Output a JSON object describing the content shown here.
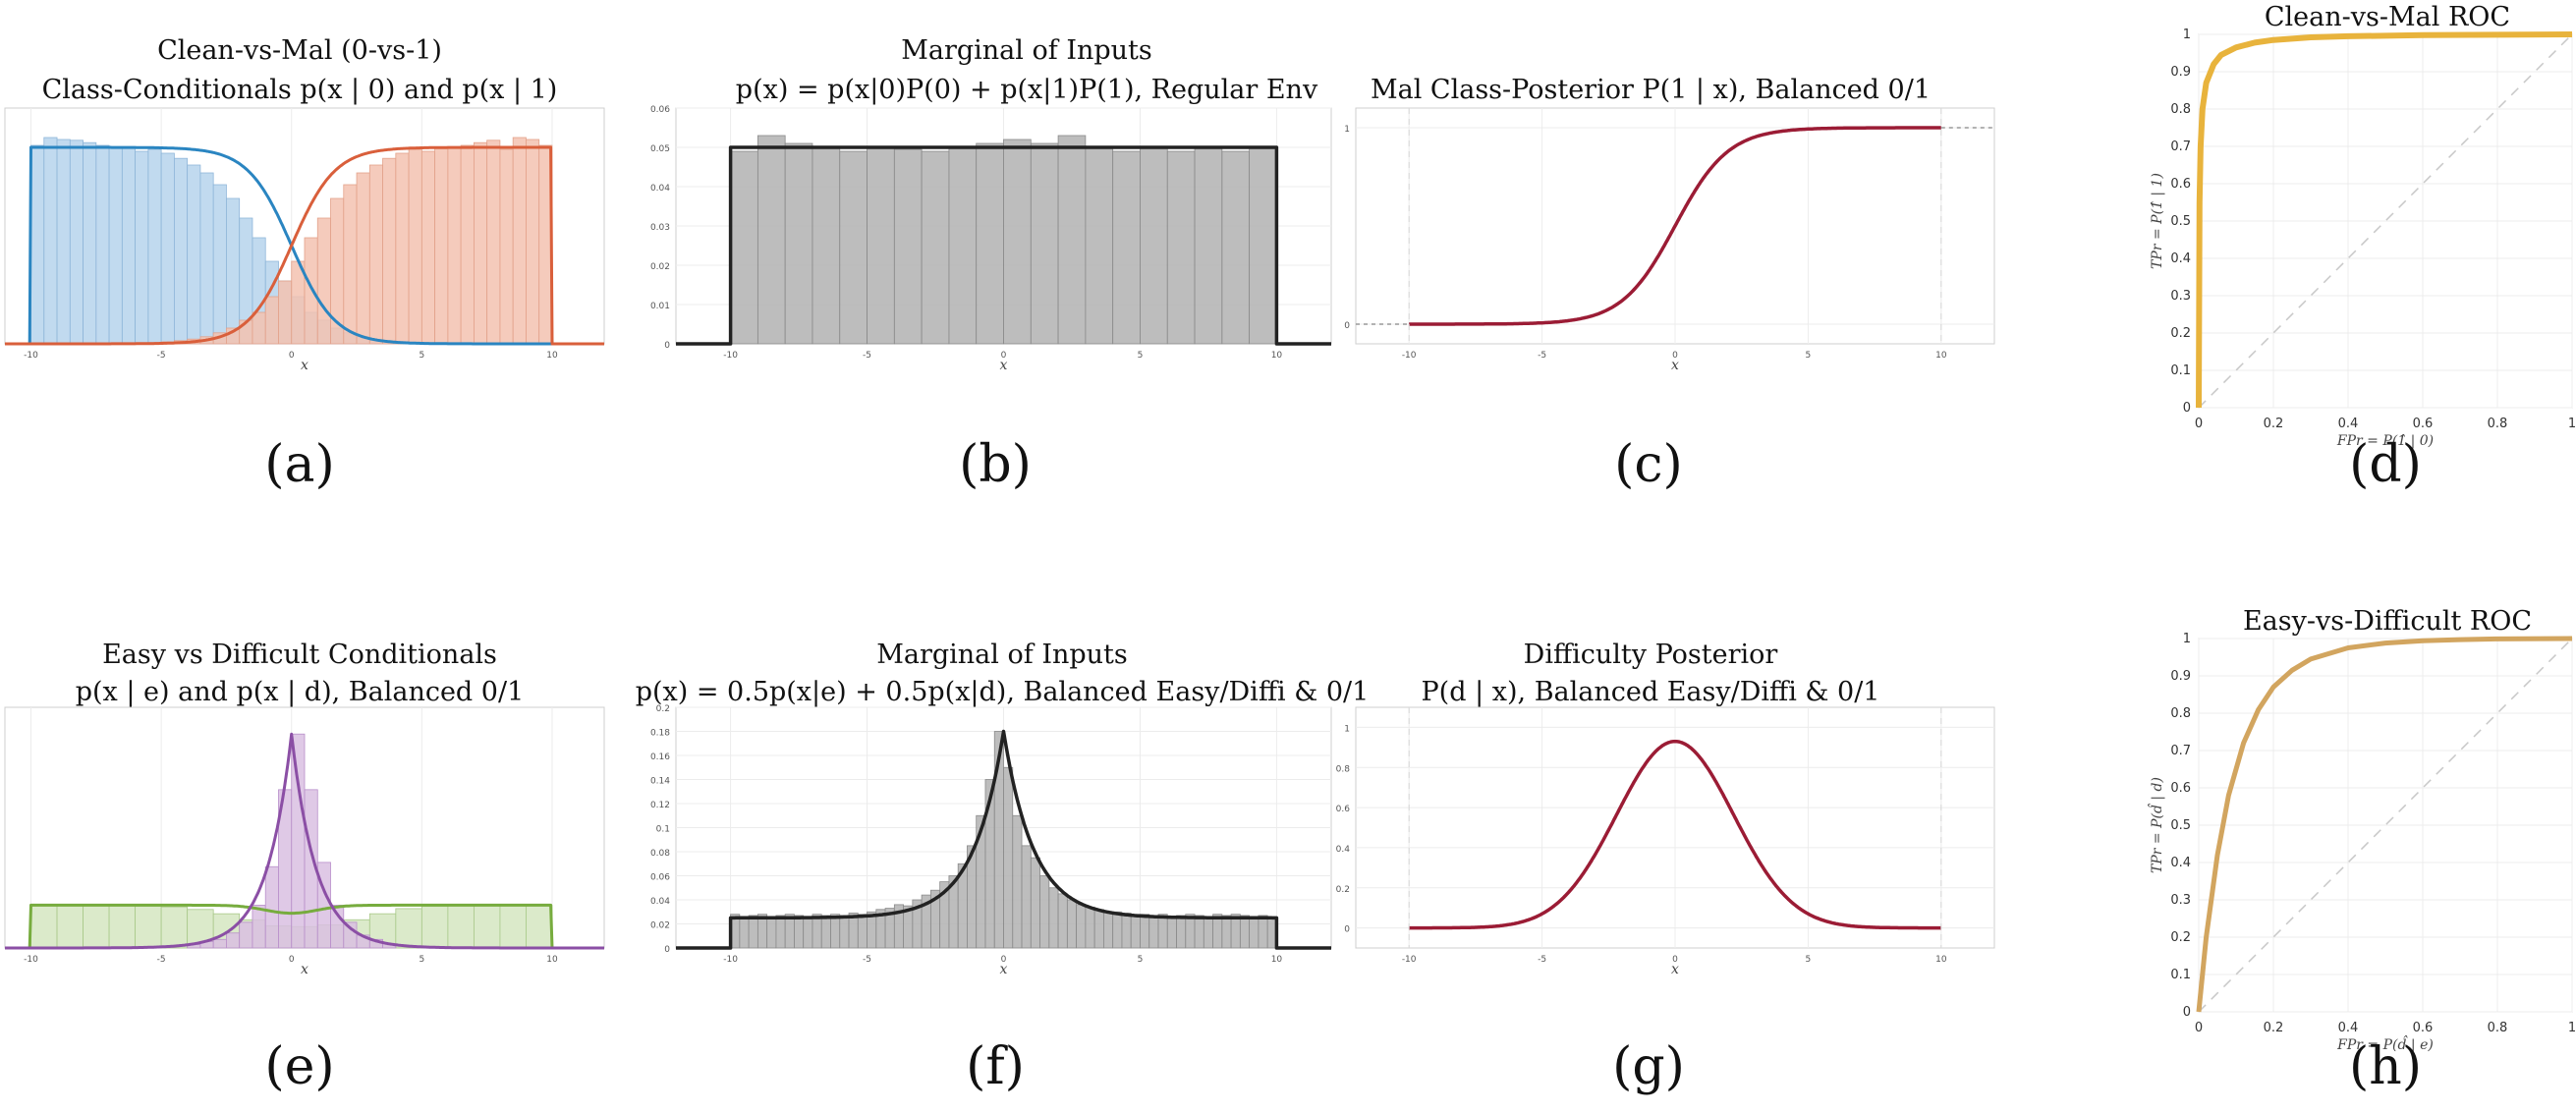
{
  "colors": {
    "blue": "#2a85c1",
    "blue_fill": "#b6d3ec",
    "orange": "#d95f3b",
    "orange_fill": "#f3c2b0",
    "green": "#77ac3e",
    "green_fill": "#d5e6c1",
    "purple": "#8b4fa5",
    "purple_fill": "#d9bfe2",
    "gray_fill": "#b1b1b1",
    "black": "#222222",
    "maroon": "#9b1c35",
    "gold": "#e8b33c",
    "roc_b": "#d2a55f"
  },
  "captions": [
    "(a)",
    "(b)",
    "(c)",
    "(d)",
    "(e)",
    "(f)",
    "(g)",
    "(h)"
  ],
  "chart_data": [
    {
      "id": "a",
      "type": "bar",
      "title": [
        "Clean-vs-Mal (0-vs-1)",
        "Class-Conditionals p(x | 0) and p(x | 1)"
      ],
      "xlabel": "x",
      "xlim": [
        -11,
        12
      ],
      "ylim": [
        0,
        0.06
      ],
      "xticks": [
        -10,
        -5,
        0,
        5,
        10
      ],
      "series": [
        {
          "values": [
            0.0505,
            0.0525,
            0.052,
            0.0518,
            0.0512,
            0.0505,
            0.0498,
            0.05,
            0.049,
            0.0495,
            0.0485,
            0.0472,
            0.0455,
            0.0435,
            0.0405,
            0.037,
            0.032,
            0.027,
            0.021,
            0.016,
            0.012,
            0.008,
            0.006,
            0.004,
            0.0028,
            0.0018,
            0.0012,
            0.0008,
            0.0005,
            0.0003,
            0.0002,
            0.0001,
            0.0001,
            0,
            0,
            0,
            0,
            0,
            0,
            0
          ],
          "x_start": -10,
          "x_end": 10
        },
        {
          "values": [
            0,
            0,
            0,
            0,
            0,
            0,
            0.0001,
            0.0001,
            0.0002,
            0.0003,
            0.0005,
            0.0008,
            0.0012,
            0.0018,
            0.0028,
            0.004,
            0.006,
            0.008,
            0.012,
            0.016,
            0.021,
            0.027,
            0.032,
            0.037,
            0.0405,
            0.0435,
            0.0455,
            0.0472,
            0.0485,
            0.0495,
            0.049,
            0.05,
            0.0498,
            0.0505,
            0.0512,
            0.0518,
            0.0495,
            0.0525,
            0.052,
            0.0505
          ],
          "x_start": -10,
          "x_end": 10
        }
      ]
    },
    {
      "id": "b",
      "type": "bar",
      "title": [
        "Marginal of Inputs",
        "p(x) = p(x|0)P(0) + p(x|1)P(1), Regular Env"
      ],
      "xlabel": "x",
      "xlim": [
        -12,
        12
      ],
      "ylim": [
        0,
        0.06
      ],
      "xticks": [
        -10,
        -5,
        0,
        5,
        10
      ],
      "yticks": [
        0,
        0.01,
        0.02,
        0.03,
        0.04,
        0.05,
        0.06
      ],
      "bins": [
        -10,
        -9,
        -8,
        -7,
        -6,
        -5,
        -4,
        -3,
        -2,
        -1,
        0,
        1,
        2,
        3,
        4,
        5,
        6,
        7,
        8,
        9
      ],
      "values": [
        0.049,
        0.053,
        0.051,
        0.05,
        0.049,
        0.05,
        0.0495,
        0.049,
        0.05,
        0.051,
        0.052,
        0.051,
        0.053,
        0.05,
        0.049,
        0.05,
        0.049,
        0.05,
        0.049,
        0.05
      ],
      "density": 0.05
    },
    {
      "id": "c",
      "type": "line",
      "title": [
        "Mal Class-Posterior P(1 | x), Balanced 0/1"
      ],
      "xlabel": "x",
      "xlim": [
        -12,
        12
      ],
      "ylim": [
        -0.1,
        1.1
      ],
      "xticks": [
        -10,
        -5,
        0,
        5,
        10
      ],
      "yticks": [
        0,
        1
      ],
      "slope": 1.0
    },
    {
      "id": "d",
      "type": "line",
      "title": [
        "Clean-vs-Mal ROC"
      ],
      "xlabel": "FPr = P(1̂ | 0)",
      "ylabel": "TPr = P(1̂ | 1)",
      "xlim": [
        0,
        1
      ],
      "ylim": [
        0,
        1
      ],
      "xticks": [
        0,
        0.2,
        0.4,
        0.6,
        0.8,
        1
      ],
      "yticks": [
        0,
        0.1,
        0.2,
        0.3,
        0.4,
        0.5,
        0.6,
        0.7,
        0.8,
        0.9,
        1
      ],
      "x": [
        0,
        0.002,
        0.005,
        0.01,
        0.02,
        0.04,
        0.06,
        0.1,
        0.15,
        0.2,
        0.3,
        0.4,
        0.6,
        0.8,
        1
      ],
      "y": [
        0,
        0.55,
        0.7,
        0.8,
        0.87,
        0.92,
        0.945,
        0.965,
        0.978,
        0.985,
        0.992,
        0.995,
        0.998,
        0.999,
        1
      ]
    },
    {
      "id": "e",
      "type": "bar",
      "title": [
        "Easy vs Difficult Conditionals",
        "p(x | e) and p(x | d), Balanced 0/1"
      ],
      "xlabel": "x",
      "xlim": [
        -11,
        12
      ],
      "ylim": [
        0,
        0.9
      ],
      "xticks": [
        -10,
        -5,
        0,
        5,
        10
      ],
      "easy_level": 0.05,
      "easy_bins": [
        -10,
        -9,
        -8,
        -7,
        -6,
        -5,
        -4,
        -3,
        -2,
        -1,
        0,
        1,
        2,
        3,
        4,
        5,
        6,
        7,
        8,
        9
      ],
      "easy_values": [
        0.05,
        0.05,
        0.05,
        0.05,
        0.049,
        0.048,
        0.045,
        0.04,
        0.033,
        0.026,
        0.025,
        0.027,
        0.033,
        0.04,
        0.046,
        0.049,
        0.05,
        0.05,
        0.05,
        0.05
      ],
      "diff_bins": [
        -4,
        -3.5,
        -3,
        -2.5,
        -2,
        -1.5,
        -1,
        -0.5,
        0,
        0.5,
        1,
        1.5,
        2,
        2.5,
        3,
        3.5
      ],
      "diff_values": [
        0.008,
        0.015,
        0.02,
        0.035,
        0.06,
        0.1,
        0.19,
        0.37,
        0.5,
        0.37,
        0.2,
        0.1,
        0.06,
        0.03,
        0.02,
        0.01
      ],
      "diff_scale": 1.0
    },
    {
      "id": "f",
      "type": "bar",
      "title": [
        "Marginal of Inputs",
        "p(x) = 0.5p(x|e) + 0.5p(x|d), Balanced Easy/Diffi & 0/1"
      ],
      "xlabel": "x",
      "xlim": [
        -12,
        12
      ],
      "ylim": [
        0,
        0.2
      ],
      "xticks": [
        -10,
        -5,
        0,
        5,
        10
      ],
      "yticks": [
        0,
        0.02,
        0.04,
        0.06,
        0.08,
        0.1,
        0.12,
        0.14,
        0.16,
        0.18,
        0.2
      ],
      "bin_width": 0.5,
      "values": [
        0.028,
        0.026,
        0.027,
        0.028,
        0.026,
        0.027,
        0.028,
        0.027,
        0.026,
        0.028,
        0.027,
        0.028,
        0.027,
        0.029,
        0.028,
        0.03,
        0.032,
        0.033,
        0.036,
        0.035,
        0.04,
        0.044,
        0.048,
        0.055,
        0.06,
        0.07,
        0.085,
        0.11,
        0.14,
        0.18,
        0.15,
        0.11,
        0.085,
        0.075,
        0.06,
        0.05,
        0.045,
        0.04,
        0.036,
        0.034,
        0.032,
        0.03,
        0.03,
        0.029,
        0.028,
        0.028,
        0.027,
        0.028,
        0.026,
        0.027,
        0.028,
        0.027,
        0.026,
        0.028,
        0.027,
        0.028,
        0.027,
        0.026,
        0.027,
        0.026
      ],
      "base": 0.025,
      "peak": 0.18
    },
    {
      "id": "g",
      "type": "line",
      "title": [
        "Difficulty Posterior",
        "P(d | x), Balanced Easy/Diffi & 0/1"
      ],
      "xlabel": "x",
      "xlim": [
        -12,
        12
      ],
      "ylim": [
        -0.1,
        1.1
      ],
      "xticks": [
        -10,
        -5,
        0,
        5,
        10
      ],
      "yticks": [
        0,
        0.2,
        0.4,
        0.6,
        0.8,
        1
      ],
      "peak": 0.93,
      "width": 2.2
    },
    {
      "id": "h",
      "type": "line",
      "title": [
        "Easy-vs-Difficult ROC"
      ],
      "xlabel": "FPr = P(d̂ | e)",
      "ylabel": "TPr = P(d̂ | d)",
      "xlim": [
        0,
        1
      ],
      "ylim": [
        0,
        1
      ],
      "xticks": [
        0,
        0.2,
        0.4,
        0.6,
        0.8,
        1
      ],
      "yticks": [
        0,
        0.1,
        0.2,
        0.3,
        0.4,
        0.5,
        0.6,
        0.7,
        0.8,
        0.9,
        1
      ],
      "x": [
        0,
        0.02,
        0.05,
        0.08,
        0.12,
        0.16,
        0.2,
        0.25,
        0.3,
        0.4,
        0.5,
        0.6,
        0.7,
        0.8,
        1
      ],
      "y": [
        0,
        0.2,
        0.42,
        0.58,
        0.72,
        0.81,
        0.87,
        0.915,
        0.945,
        0.975,
        0.988,
        0.994,
        0.997,
        0.999,
        1
      ]
    }
  ]
}
